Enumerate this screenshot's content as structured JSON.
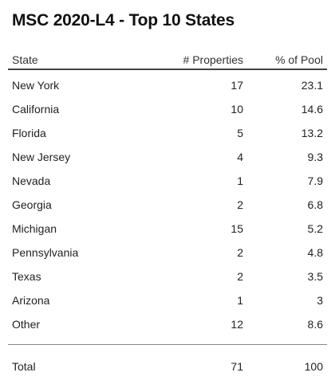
{
  "title": "MSC 2020-L4 - Top 10 States",
  "table": {
    "headers": {
      "state": "State",
      "properties": "# Properties",
      "pool": "% of Pool"
    },
    "rows": [
      {
        "state": "New York",
        "properties": "17",
        "pool": "23.1"
      },
      {
        "state": "California",
        "properties": "10",
        "pool": "14.6"
      },
      {
        "state": "Florida",
        "properties": "5",
        "pool": "13.2"
      },
      {
        "state": "New Jersey",
        "properties": "4",
        "pool": "9.3"
      },
      {
        "state": "Nevada",
        "properties": "1",
        "pool": "7.9"
      },
      {
        "state": "Georgia",
        "properties": "2",
        "pool": "6.8"
      },
      {
        "state": "Michigan",
        "properties": "15",
        "pool": "5.2"
      },
      {
        "state": "Pennsylvania",
        "properties": "2",
        "pool": "4.8"
      },
      {
        "state": "Texas",
        "properties": "2",
        "pool": "3.5"
      },
      {
        "state": "Arizona",
        "properties": "1",
        "pool": "3"
      },
      {
        "state": "Other",
        "properties": "12",
        "pool": "8.6"
      }
    ],
    "total": {
      "state": "Total",
      "properties": "71",
      "pool": "100"
    }
  }
}
